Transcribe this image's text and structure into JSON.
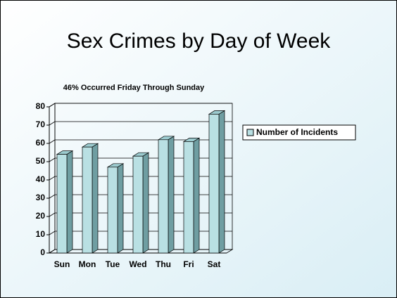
{
  "chart_data": {
    "type": "bar3d",
    "title": "Sex Crimes by Day of Week",
    "subtitle": "46% Occurred  Friday Through Sunday",
    "categories": [
      "Sun",
      "Mon",
      "Tue",
      "Wed",
      "Thu",
      "Fri",
      "Sat"
    ],
    "series": [
      {
        "name": "Number of Incidents",
        "color": "#b9e0e3",
        "values": [
          54,
          58,
          47,
          53,
          62,
          61,
          76
        ]
      }
    ],
    "ylim": [
      0,
      80
    ],
    "yticks": [
      0,
      10,
      20,
      30,
      40,
      50,
      60,
      70,
      80
    ],
    "grid": true
  }
}
